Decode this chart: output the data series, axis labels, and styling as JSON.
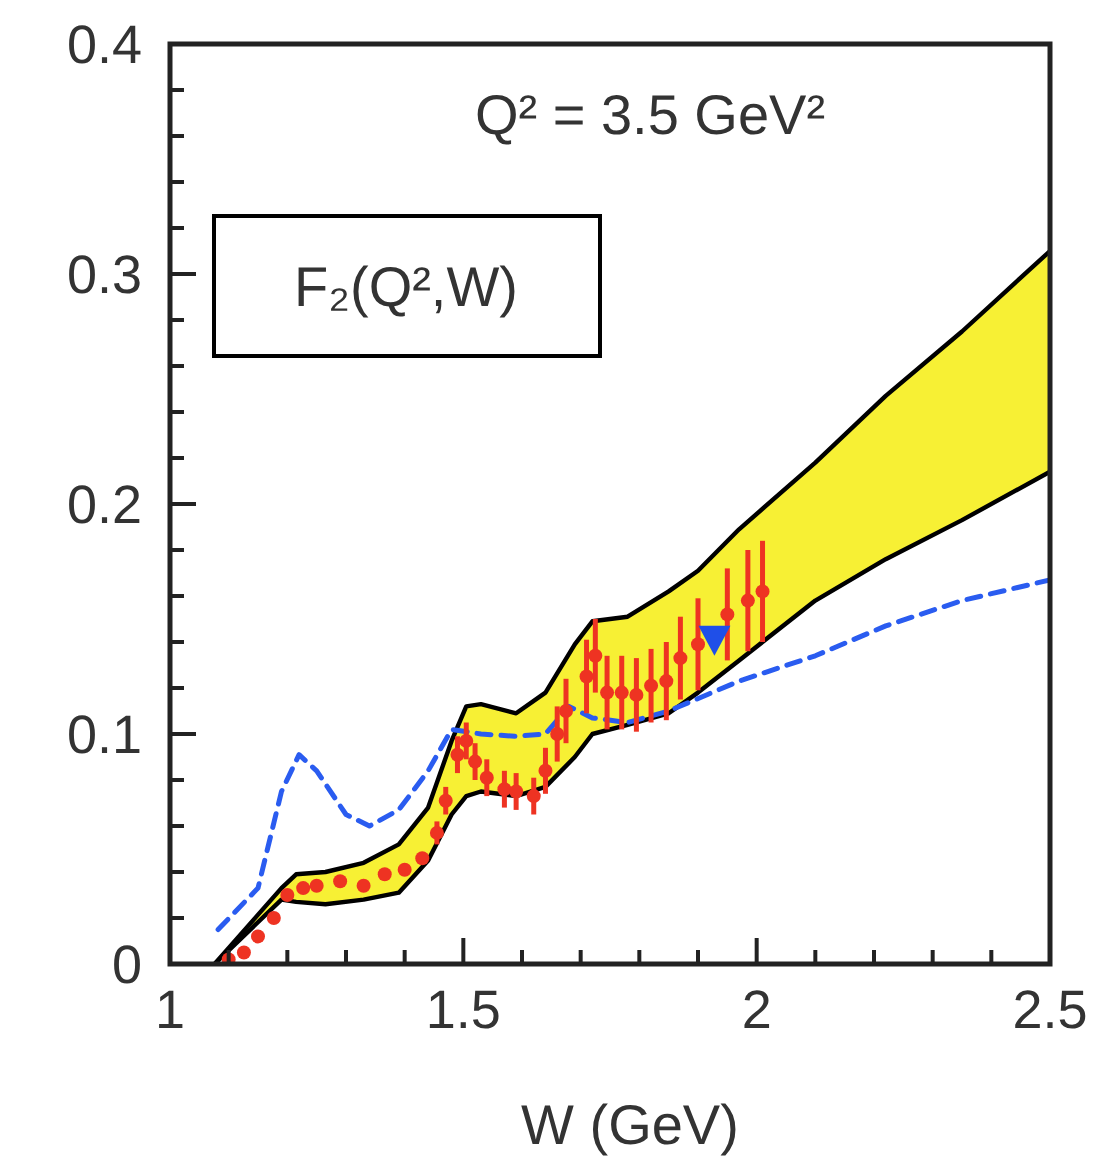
{
  "chart_data": {
    "type": "line",
    "title": "Q² = 3.5 GeV²",
    "xlabel": "W (GeV)",
    "annotations": [
      "F₂(Q²,W)"
    ],
    "xlim": [
      1,
      2.5
    ],
    "ylim": [
      0,
      0.4
    ],
    "xticks": [
      1,
      {
        "value": 1.1,
        "label": null
      },
      {
        "value": 1.2,
        "label": null
      },
      {
        "value": 1.3,
        "label": null
      },
      {
        "value": 1.4,
        "label": null
      },
      1.5,
      {
        "value": 1.6,
        "label": null
      },
      {
        "value": 1.7,
        "label": null
      },
      {
        "value": 1.8,
        "label": null
      },
      {
        "value": 1.9,
        "label": null
      },
      2,
      {
        "value": 2.1,
        "label": null
      },
      {
        "value": 2.2,
        "label": null
      },
      {
        "value": 2.3,
        "label": null
      },
      {
        "value": 2.4,
        "label": null
      },
      2.5
    ],
    "yticks": [
      0,
      {
        "value": 0.02,
        "label": null
      },
      {
        "value": 0.04,
        "label": null
      },
      {
        "value": 0.06,
        "label": null
      },
      {
        "value": 0.08,
        "label": null
      },
      0.1,
      {
        "value": 0.12,
        "label": null
      },
      {
        "value": 0.14,
        "label": null
      },
      {
        "value": 0.16,
        "label": null
      },
      {
        "value": 0.18,
        "label": null
      },
      0.2,
      {
        "value": 0.22,
        "label": null
      },
      {
        "value": 0.24,
        "label": null
      },
      {
        "value": 0.26,
        "label": null
      },
      {
        "value": 0.28,
        "label": null
      },
      0.3,
      {
        "value": 0.32,
        "label": null
      },
      {
        "value": 0.34,
        "label": null
      },
      {
        "value": 0.36,
        "label": null
      },
      {
        "value": 0.38,
        "label": null
      },
      0.4
    ],
    "series": [
      {
        "type": "line",
        "color": "#000000",
        "marker": "none",
        "line_style": "solid",
        "x": [
          1.076,
          1.19,
          1.215,
          1.265,
          1.33,
          1.39,
          1.44,
          1.48,
          1.505,
          1.53,
          1.59,
          1.64,
          1.69,
          1.72,
          1.78,
          1.85,
          1.9,
          1.97,
          2.1,
          2.22,
          2.35,
          2.5
        ],
        "values": [
          0,
          0.033,
          0.039,
          0.04,
          0.044,
          0.052,
          0.068,
          0.097,
          0.112,
          0.113,
          0.109,
          0.118,
          0.139,
          0.149,
          0.151,
          0.162,
          0.171,
          0.189,
          0.218,
          0.247,
          0.275,
          0.31
        ]
      },
      {
        "type": "line",
        "color": "#000000",
        "marker": "none",
        "line_style": "solid",
        "x": [
          1.076,
          1.19,
          1.215,
          1.265,
          1.33,
          1.39,
          1.44,
          1.48,
          1.505,
          1.53,
          1.59,
          1.64,
          1.69,
          1.72,
          1.78,
          1.85,
          1.9,
          1.97,
          2.1,
          2.22,
          2.35,
          2.5
        ],
        "values": [
          0,
          0.028,
          0.027,
          0.026,
          0.028,
          0.031,
          0.045,
          0.065,
          0.073,
          0.075,
          0.073,
          0.077,
          0.09,
          0.1,
          0.104,
          0.109,
          0.118,
          0.132,
          0.158,
          0.176,
          0.193,
          0.214
        ]
      },
      {
        "color": "#2a5cf0",
        "marker": "none",
        "line_style": "dashed",
        "x": [
          1.082,
          1.15,
          1.19,
          1.22,
          1.25,
          1.3,
          1.34,
          1.39,
          1.44,
          1.48,
          1.53,
          1.59,
          1.64,
          1.68,
          1.72,
          1.78,
          1.85,
          1.97,
          2.1,
          2.22,
          2.35,
          2.5
        ],
        "values": [
          0.015,
          0.033,
          0.075,
          0.091,
          0.084,
          0.065,
          0.06,
          0.067,
          0.084,
          0.102,
          0.1,
          0.099,
          0.1,
          0.112,
          0.107,
          0.105,
          0.11,
          0.123,
          0.134,
          0.147,
          0.158,
          0.167
        ]
      },
      {
        "type": "scatter",
        "color": "#ee3322",
        "marker": "circle",
        "x": [
          1.1,
          1.126,
          1.15,
          1.177,
          1.2,
          1.227,
          1.25,
          1.29,
          1.33,
          1.366,
          1.4,
          1.43,
          1.455,
          1.47,
          1.49,
          1.505,
          1.52,
          1.54,
          1.57,
          1.59,
          1.62,
          1.64,
          1.66,
          1.675,
          1.71,
          1.725,
          1.745,
          1.77,
          1.795,
          1.82,
          1.846,
          1.87,
          1.9,
          1.95,
          1.985,
          2.01
        ],
        "values": [
          0.002,
          0.005,
          0.012,
          0.02,
          0.03,
          0.033,
          0.034,
          0.036,
          0.034,
          0.039,
          0.041,
          0.046,
          0.057,
          0.071,
          0.091,
          0.097,
          0.088,
          0.081,
          0.076,
          0.075,
          0.073,
          0.084,
          0.1,
          0.11,
          0.125,
          0.134,
          0.118,
          0.118,
          0.117,
          0.121,
          0.123,
          0.133,
          0.139,
          0.152,
          0.158,
          0.162
        ],
        "errors": [
          null,
          null,
          null,
          null,
          null,
          null,
          null,
          null,
          null,
          null,
          null,
          null,
          0.005,
          0.006,
          0.008,
          0.008,
          0.008,
          0.008,
          0.008,
          0.008,
          0.008,
          0.01,
          0.012,
          0.014,
          0.016,
          0.016,
          0.016,
          0.016,
          0.016,
          0.016,
          0.017,
          0.018,
          0.02,
          0.02,
          0.022,
          0.022
        ]
      },
      {
        "type": "scatter",
        "color": "#1f4fe8",
        "marker": "triangle",
        "x": [
          1.928
        ],
        "values": [
          0.141
        ]
      }
    ]
  }
}
